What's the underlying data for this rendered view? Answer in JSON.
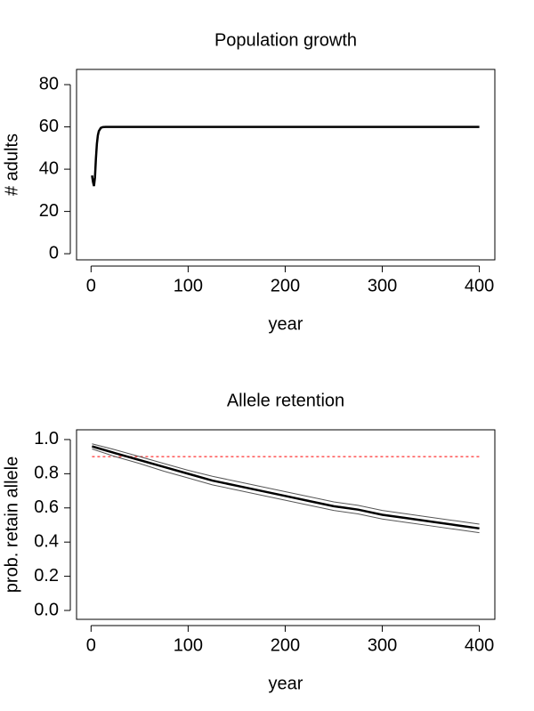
{
  "chart_data": [
    {
      "type": "line",
      "title": "Population growth",
      "x_label": "year",
      "y_label": "# adults",
      "x": [
        1,
        2,
        3,
        4,
        5,
        6,
        7,
        8,
        10,
        12,
        15,
        20,
        400
      ],
      "series": [
        {
          "color": "#000000",
          "values": [
            37,
            34,
            32,
            36,
            45,
            52,
            56,
            58,
            59.5,
            59.9,
            60,
            60,
            60
          ]
        }
      ],
      "xlim": [
        -14.96,
        415.96
      ],
      "xticks": [
        0,
        100,
        200,
        300,
        400
      ],
      "ylim": [
        -2.9,
        87.2
      ],
      "yticks": [
        0,
        20,
        40,
        60,
        80
      ]
    },
    {
      "type": "line",
      "title": "Allele retention",
      "x_label": "year",
      "y_label": "prob. retain allele",
      "x": [
        1,
        25,
        50,
        75,
        100,
        125,
        150,
        175,
        200,
        225,
        250,
        275,
        300,
        325,
        350,
        375,
        400
      ],
      "series": [
        {
          "color": "#000000",
          "values": [
            0.96,
            0.92,
            0.88,
            0.84,
            0.8,
            0.76,
            0.73,
            0.7,
            0.67,
            0.64,
            0.61,
            0.59,
            0.56,
            0.54,
            0.52,
            0.5,
            0.48
          ]
        },
        {
          "color": "#555555",
          "values": [
            0.975,
            0.94,
            0.9,
            0.86,
            0.82,
            0.785,
            0.755,
            0.725,
            0.695,
            0.665,
            0.635,
            0.615,
            0.585,
            0.565,
            0.545,
            0.525,
            0.505
          ]
        },
        {
          "color": "#555555",
          "values": [
            0.945,
            0.9,
            0.86,
            0.815,
            0.775,
            0.735,
            0.705,
            0.675,
            0.645,
            0.615,
            0.585,
            0.565,
            0.535,
            0.515,
            0.495,
            0.475,
            0.455
          ]
        }
      ],
      "hline": {
        "value": 0.9,
        "color": "#ff0000"
      },
      "xlim": [
        -14.96,
        415.96
      ],
      "xticks": [
        0,
        100,
        200,
        300,
        400
      ],
      "ylim": [
        -0.052,
        1.057
      ],
      "yticks": [
        {
          "value": 0,
          "label": "0.0"
        },
        0.2,
        0.4,
        0.6,
        0.8,
        {
          "value": 1,
          "label": "1.0"
        }
      ]
    }
  ]
}
